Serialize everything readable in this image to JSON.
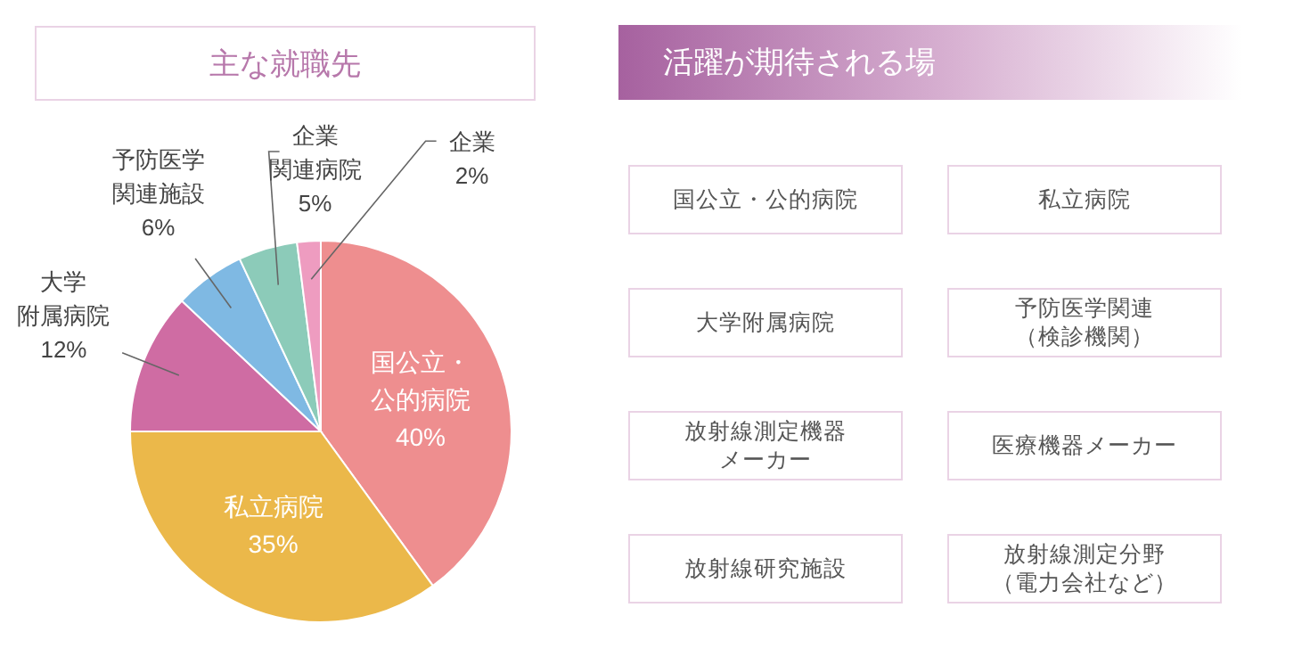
{
  "chart_data": [
    {
      "type": "pie",
      "title": "主な就職先",
      "categories": [
        "国公立・公的病院",
        "私立病院",
        "大学附属病院",
        "予防医学関連施設",
        "企業関連病院",
        "企業"
      ],
      "values": [
        40,
        35,
        12,
        6,
        5,
        2
      ],
      "value_labels": [
        "40%",
        "35%",
        "12%",
        "6%",
        "5%",
        "2%"
      ],
      "colors": [
        "#ee8e8f",
        "#ebb84a",
        "#cf6ca3",
        "#7fb9e3",
        "#8ccbb9",
        "#ee9cc0"
      ]
    },
    {
      "type": "other",
      "title": "活躍が期待される場",
      "annotations": [
        "国公立・公的病院",
        "私立病院",
        "大学附属病院",
        "予防医学関連（検診機関）",
        "放射線測定機器メーカー",
        "医療機器メーカー",
        "放射線研究施設",
        "放射線測定分野（電力会社など）"
      ]
    }
  ]
}
